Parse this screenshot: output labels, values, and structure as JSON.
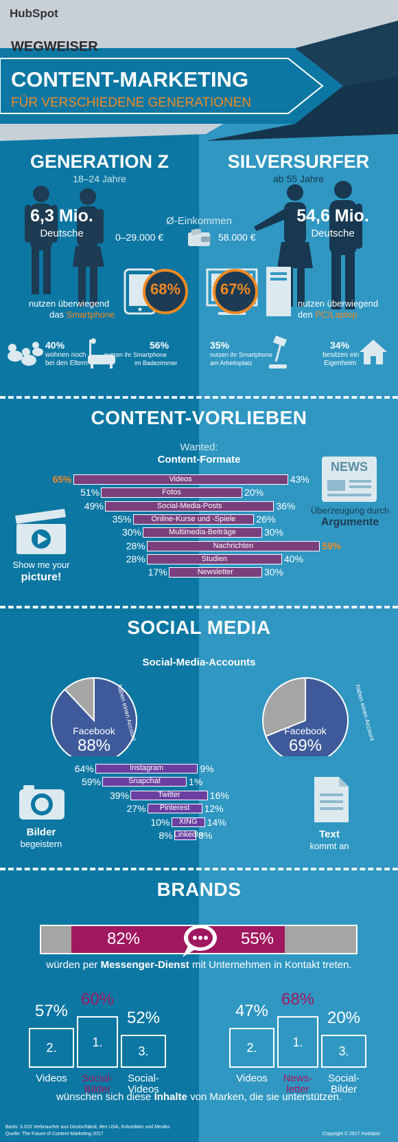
{
  "brand": {
    "logo": "HubSpot"
  },
  "header": {
    "kicker": "WEGWEISER",
    "title": "CONTENT-MARKETING",
    "subtitle": "FÜR VERSCHIEDENE GENERATIONEN"
  },
  "generations": {
    "left": {
      "name": "GENERATION Z",
      "age": "18–24 Jahre",
      "count": "6,3 Mio.",
      "count_label": "Deutsche",
      "income": "0–29.000 €",
      "device_pct": "68%",
      "device_text_1": "nutzen überwiegend",
      "device_text_2": "das ",
      "device_name": "Smartphone"
    },
    "right": {
      "name": "SILVERSURFER",
      "age": "ab 55 Jahre",
      "count": "54,6 Mio.",
      "count_label": "Deutsche",
      "income": "58.000 €",
      "device_pct": "67%",
      "device_text_1": "nutzen überwiegend",
      "device_text_2": "den ",
      "device_name": "PC/Laptop"
    },
    "income_label": "Ø-Einkommen"
  },
  "facts": [
    {
      "pct": "40%",
      "line1": "wohnen noch",
      "line2": "bei den Eltern",
      "icon": "ducks-icon"
    },
    {
      "pct": "56%",
      "line1": "nutzen ihr Smartphone",
      "line2": "im Badezimmer",
      "icon": "bathtub-icon"
    },
    {
      "pct": "35%",
      "line1": "nutzen ihr Smartphone",
      "line2": "am Arbeitsplatz",
      "icon": "desk-lamp-icon"
    },
    {
      "pct": "34%",
      "line1": "besitzen ein",
      "line2": "Eigenheim",
      "icon": "house-icon"
    }
  ],
  "content": {
    "title": "CONTENT-VORLIEBEN",
    "chart_title_1": "Wanted:",
    "chart_title_2": "Content-Formate",
    "left_caption_1": "Show me your",
    "left_caption_2": "picture!",
    "right_caption_1": "Überzeugung durch",
    "right_caption_2": "Argumente",
    "news_label": "NEWS"
  },
  "social": {
    "title": "SOCIAL MEDIA",
    "chart_title": "Social-Media-Accounts",
    "pie_ring_text": "haben einen Account",
    "left_caption_1": "Bilder",
    "left_caption_2": "begeistern",
    "right_caption_1": "Text",
    "right_caption_2": "kommt an"
  },
  "brands": {
    "title": "BRANDS",
    "messenger_text_1": "würden per ",
    "messenger_text_bold": "Messenger-Dienst",
    "messenger_text_2": " mit Unternehmen in Kontakt treten.",
    "footer_text_1": "wünschen sich diese ",
    "footer_text_bold": "Inhalte",
    "footer_text_2": " von Marken, die sie unterstützen."
  },
  "footer": {
    "basis": "Basis: 3.010 Verbraucher aus Deutschland, den USA, Kolumbien und Mexiko",
    "source": "Quelle: The Future of Content Marketing 2017",
    "copyright": "Copyright © 2017 HubSpot"
  },
  "colors": {
    "orange": "#f08a24",
    "magenta": "#a0185f",
    "purple_bar": "#7a3f7d",
    "social_bar": "#6a3fa0",
    "pie_blue": "#3e5a9a",
    "pie_grey": "#a5a5a5"
  },
  "chart_data": [
    {
      "type": "bar",
      "title": "Wanted: Content-Formate",
      "categories": [
        "Videos",
        "Fotos",
        "Social-Media-Posts",
        "Online-Kurse und -Spiele",
        "Multimedia-Beiträge",
        "Nachrichten",
        "Studien",
        "Newsletter"
      ],
      "series": [
        {
          "name": "GENERATION Z",
          "values": [
            65,
            51,
            49,
            35,
            30,
            28,
            28,
            17
          ]
        },
        {
          "name": "SILVERSURFER",
          "values": [
            43,
            20,
            36,
            26,
            30,
            59,
            40,
            30
          ]
        }
      ],
      "labels_left": [
        "65%",
        "51%",
        "49%",
        "35%",
        "30%",
        "28%",
        "28%",
        "17%"
      ],
      "labels_right": [
        "43%",
        "20%",
        "36%",
        "26%",
        "30%",
        "59%",
        "40%",
        "30%"
      ],
      "highlight_left": [
        0
      ],
      "highlight_right": [
        5
      ]
    },
    {
      "type": "pie",
      "title": "Social-Media-Accounts",
      "pies": [
        {
          "label": "Facebook",
          "value": 88,
          "text": "88%"
        },
        {
          "label": "Facebook",
          "value": 69,
          "text": "69%"
        }
      ]
    },
    {
      "type": "bar",
      "categories": [
        "Instagram",
        "Snapchat",
        "Twitter",
        "Pinterest",
        "XING",
        "LinkedIn"
      ],
      "series": [
        {
          "name": "GENERATION Z",
          "values": [
            64,
            59,
            39,
            27,
            10,
            8
          ]
        },
        {
          "name": "SILVERSURFER",
          "values": [
            9,
            1,
            16,
            12,
            14,
            8
          ]
        }
      ],
      "labels_left": [
        "64%",
        "59%",
        "39%",
        "27%",
        "10%",
        "8%"
      ],
      "labels_right": [
        "9%",
        "1%",
        "16%",
        "12%",
        "14%",
        "8%"
      ]
    },
    {
      "type": "bar",
      "title": "Messenger",
      "values": [
        82,
        55
      ],
      "labels": [
        "82%",
        "55%"
      ]
    },
    {
      "type": "bar",
      "title": "Inhalte von Marken",
      "groups": [
        {
          "items": [
            {
              "rank": "2.",
              "pct": "57%",
              "name": "Videos",
              "highlight": false
            },
            {
              "rank": "1.",
              "pct": "60%",
              "name": "Social-Bilder",
              "highlight": true
            },
            {
              "rank": "3.",
              "pct": "52%",
              "name": "Social-Videos",
              "highlight": false
            }
          ]
        },
        {
          "items": [
            {
              "rank": "2.",
              "pct": "47%",
              "name": "Videos",
              "highlight": false
            },
            {
              "rank": "1.",
              "pct": "68%",
              "name": "News-letter",
              "highlight": true
            },
            {
              "rank": "3.",
              "pct": "20%",
              "name": "Social-Bilder",
              "highlight": false
            }
          ]
        }
      ]
    }
  ]
}
